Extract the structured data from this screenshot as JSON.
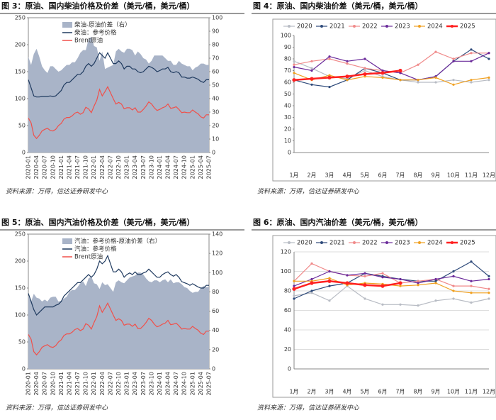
{
  "chart_data": [
    {
      "type": "combo",
      "title": "图 3：原油、国内柴油价格及价差（美元/桶，美元/桶）",
      "note": "资料来源：万得，信达证券研发中心",
      "categories": [
        "2020-01",
        null,
        null,
        "2020-04",
        null,
        null,
        "2020-07",
        null,
        null,
        "2020-10",
        null,
        null,
        "2021-01",
        null,
        null,
        "2021-04",
        null,
        null,
        "2021-07",
        null,
        null,
        "2021-10",
        null,
        null,
        "2022-01",
        null,
        null,
        "2022-04",
        null,
        null,
        "2022-07",
        null,
        null,
        "2022-10",
        null,
        null,
        "2023-01",
        null,
        null,
        "2023-04",
        null,
        null,
        "2023-07",
        null,
        null,
        "2023-10",
        null,
        null,
        "2024-01",
        null,
        null,
        "2024-04",
        null,
        null,
        "2024-07",
        null,
        null,
        "2024-10",
        null,
        null,
        "2025-01",
        null,
        null,
        "2025-04",
        null,
        null,
        "2025-07"
      ],
      "ylim": [
        0,
        250
      ],
      "yticks": [
        0,
        50,
        100,
        150,
        200,
        250
      ],
      "y2lim": [
        0,
        100
      ],
      "y2ticks": [
        0,
        10,
        20,
        30,
        40,
        50,
        60,
        70,
        80,
        90,
        100
      ],
      "series": [
        {
          "name": "柴油-原油价差（右）",
          "color": "#a9b4c8",
          "style": "area",
          "axis": "y2",
          "values": [
            71,
            65,
            73,
            77,
            71,
            64,
            61,
            59,
            64,
            64,
            62,
            60,
            61,
            63,
            65,
            65,
            67,
            67,
            70,
            74,
            76,
            76,
            84,
            86,
            79,
            78,
            68,
            75,
            62,
            63,
            64,
            65,
            75,
            77,
            75,
            74,
            77,
            77,
            76,
            72,
            75,
            73,
            70,
            69,
            66,
            68,
            72,
            72,
            72,
            72,
            70,
            68,
            68,
            65,
            65,
            68,
            66,
            65,
            64,
            64,
            61,
            63,
            64,
            66,
            66,
            65,
            65
          ]
        },
        {
          "name": "柴油：参考价格",
          "color": "#1f3a5f",
          "style": "line",
          "values": [
            135,
            120,
            105,
            103,
            103,
            104,
            104,
            104,
            105,
            104,
            105,
            110,
            115,
            125,
            130,
            130,
            135,
            140,
            145,
            145,
            150,
            160,
            165,
            160,
            165,
            175,
            185,
            180,
            175,
            185,
            175,
            165,
            165,
            170,
            165,
            155,
            160,
            160,
            155,
            155,
            150,
            148,
            150,
            155,
            160,
            158,
            155,
            150,
            152,
            155,
            155,
            158,
            150,
            148,
            150,
            148,
            140,
            140,
            138,
            138,
            140,
            138,
            136,
            132,
            130,
            135,
            135
          ]
        },
        {
          "name": "Brent原油",
          "color": "#f0504a",
          "style": "line",
          "values": [
            64,
            55,
            32,
            26,
            32,
            40,
            43,
            45,
            41,
            40,
            43,
            50,
            54,
            62,
            65,
            65,
            68,
            73,
            75,
            71,
            74,
            84,
            81,
            74,
            86,
            97,
            117,
            105,
            113,
            122,
            111,
            100,
            90,
            93,
            90,
            81,
            83,
            83,
            79,
            83,
            75,
            75,
            80,
            86,
            94,
            90,
            83,
            78,
            80,
            83,
            85,
            90,
            82,
            83,
            85,
            80,
            74,
            75,
            74,
            74,
            79,
            75,
            72,
            66,
            64,
            70,
            70
          ]
        }
      ]
    },
    {
      "type": "line",
      "title": "图 4：原油、国内柴油价差（美元/桶，美元/桶）",
      "note": "资料来源：万得，信达证券研发中心",
      "categories": [
        "1月",
        "2月",
        "3月",
        "4月",
        "5月",
        "6月",
        "7月",
        "8月",
        "9月",
        "10月",
        "11月",
        "12月"
      ],
      "ylim": [
        0,
        100
      ],
      "yticks": [
        0,
        10,
        20,
        30,
        40,
        50,
        60,
        70,
        80,
        90,
        100
      ],
      "grid": false,
      "series": [
        {
          "name": "2020",
          "color": "#b8bcc4",
          "values": [
            78,
            72,
            65,
            63,
            70,
            65,
            62,
            60,
            60,
            62,
            60,
            62
          ]
        },
        {
          "name": "2021",
          "color": "#2e4a7a",
          "values": [
            62,
            58,
            56,
            62,
            72,
            68,
            62,
            62,
            65,
            78,
            88,
            80
          ]
        },
        {
          "name": "2022",
          "color": "#f08a8a",
          "values": [
            75,
            78,
            80,
            76,
            72,
            70,
            68,
            75,
            86,
            80,
            85,
            85
          ]
        },
        {
          "name": "2023",
          "color": "#6a2a9a",
          "values": [
            73,
            70,
            82,
            78,
            80,
            70,
            68,
            62,
            65,
            78,
            78,
            85
          ]
        },
        {
          "name": "2024",
          "color": "#f0a020",
          "values": [
            68,
            62,
            66,
            62,
            65,
            64,
            62,
            62,
            64,
            58,
            62,
            64
          ]
        },
        {
          "name": "2025",
          "color": "#ff2020",
          "values": [
            62,
            63,
            64,
            65,
            67,
            68,
            70,
            null,
            null,
            null,
            null,
            null
          ]
        }
      ]
    },
    {
      "type": "combo",
      "title": "图 5：原油、国内汽油价格及价差（美元/桶，美元/桶）",
      "note": "资料来源：万得，信达证券研发中心",
      "categories": [
        "2020-01",
        null,
        null,
        "2020-04",
        null,
        null,
        "2020-07",
        null,
        null,
        "2020-10",
        null,
        null,
        "2021-01",
        null,
        null,
        "2021-04",
        null,
        null,
        "2021-07",
        null,
        null,
        "2021-10",
        null,
        null,
        "2022-01",
        null,
        null,
        "2022-04",
        null,
        null,
        "2022-07",
        null,
        null,
        "2022-10",
        null,
        null,
        "2023-01",
        null,
        null,
        "2023-04",
        null,
        null,
        "2023-07",
        null,
        null,
        "2023-10",
        null,
        null,
        "2024-01",
        null,
        null,
        "2024-04",
        null,
        null,
        "2024-07",
        null,
        null,
        "2024-10",
        null,
        null,
        "2025-01",
        null,
        null,
        "2025-04",
        null,
        null,
        "2025-07"
      ],
      "ylim": [
        0,
        250
      ],
      "yticks": [
        0,
        50,
        100,
        150,
        200,
        250
      ],
      "y2lim": [
        0,
        140
      ],
      "y2ticks": [
        0,
        20,
        40,
        60,
        80,
        100,
        120,
        140
      ],
      "series": [
        {
          "name": "汽油：参考价格-原油价差（右）",
          "color": "#a9b4c8",
          "style": "area",
          "axis": "y2",
          "values": [
            76,
            70,
            78,
            74,
            73,
            70,
            72,
            70,
            74,
            75,
            75,
            70,
            71,
            73,
            75,
            80,
            82,
            82,
            85,
            89,
            91,
            86,
            94,
            96,
            89,
            88,
            83,
            90,
            87,
            88,
            84,
            80,
            90,
            92,
            90,
            89,
            92,
            95,
            96,
            97,
            100,
            100,
            98,
            94,
            91,
            90,
            92,
            92,
            90,
            92,
            93,
            90,
            93,
            89,
            90,
            90,
            88,
            85,
            84,
            81,
            79,
            80,
            80,
            84,
            86,
            85,
            85
          ]
        },
        {
          "name": "汽油：参考价格",
          "color": "#1f3a5f",
          "style": "line",
          "values": [
            140,
            125,
            110,
            100,
            105,
            110,
            115,
            115,
            115,
            115,
            118,
            120,
            125,
            135,
            140,
            145,
            150,
            155,
            160,
            160,
            165,
            170,
            175,
            170,
            175,
            185,
            200,
            195,
            200,
            210,
            195,
            180,
            180,
            185,
            180,
            170,
            175,
            178,
            175,
            180,
            175,
            175,
            178,
            180,
            185,
            180,
            175,
            170,
            170,
            175,
            178,
            180,
            175,
            172,
            175,
            170,
            162,
            160,
            158,
            155,
            158,
            155,
            152,
            150,
            150,
            155,
            155
          ]
        },
        {
          "name": "Brent原油",
          "color": "#f0504a",
          "style": "line",
          "values": [
            64,
            55,
            32,
            26,
            32,
            40,
            43,
            45,
            41,
            40,
            43,
            50,
            54,
            62,
            65,
            65,
            68,
            73,
            75,
            71,
            74,
            84,
            81,
            74,
            86,
            97,
            117,
            105,
            113,
            122,
            111,
            100,
            90,
            93,
            90,
            81,
            83,
            83,
            79,
            83,
            75,
            75,
            80,
            86,
            94,
            90,
            83,
            78,
            80,
            83,
            85,
            90,
            82,
            83,
            85,
            80,
            74,
            75,
            74,
            74,
            79,
            75,
            72,
            66,
            64,
            70,
            70
          ]
        }
      ]
    },
    {
      "type": "line",
      "title": "图 6：原油、国内汽油价差（美元/桶，美元/桶）",
      "note": "资料来源：万得，信达证券研发中心",
      "categories": [
        "1月",
        "2月",
        "3月",
        "4月",
        "5月",
        "6月",
        "7月",
        "8月",
        "9月",
        "10月",
        "11月",
        "12月"
      ],
      "ylim": [
        0,
        120
      ],
      "yticks": [
        0,
        20,
        40,
        60,
        80,
        100,
        120
      ],
      "grid": true,
      "series": [
        {
          "name": "2020",
          "color": "#b8bcc4",
          "values": [
            75,
            78,
            70,
            85,
            72,
            66,
            66,
            65,
            70,
            72,
            68,
            72
          ]
        },
        {
          "name": "2021",
          "color": "#2e4a7a",
          "values": [
            72,
            80,
            85,
            88,
            98,
            95,
            92,
            90,
            90,
            100,
            110,
            95
          ]
        },
        {
          "name": "2022",
          "color": "#f08a8a",
          "values": [
            90,
            108,
            100,
            96,
            95,
            98,
            88,
            90,
            92,
            85,
            85,
            82
          ]
        },
        {
          "name": "2023",
          "color": "#6a2a9a",
          "values": [
            85,
            92,
            100,
            96,
            98,
            94,
            92,
            88,
            92,
            95,
            90,
            92
          ]
        },
        {
          "name": "2024",
          "color": "#f0a020",
          "values": [
            90,
            90,
            93,
            86,
            88,
            87,
            85,
            86,
            88,
            80,
            78,
            78
          ]
        },
        {
          "name": "2025",
          "color": "#ff2020",
          "values": [
            82,
            88,
            90,
            88,
            86,
            85,
            88,
            null,
            null,
            null,
            null,
            null
          ]
        }
      ]
    }
  ]
}
